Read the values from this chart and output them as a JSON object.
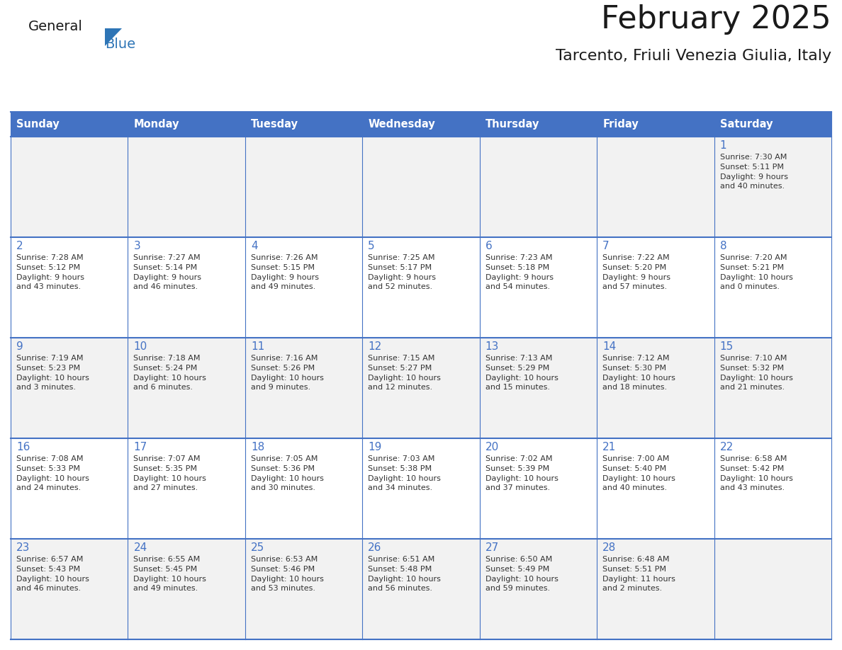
{
  "title": "February 2025",
  "subtitle": "Tarcento, Friuli Venezia Giulia, Italy",
  "days_of_week": [
    "Sunday",
    "Monday",
    "Tuesday",
    "Wednesday",
    "Thursday",
    "Friday",
    "Saturday"
  ],
  "header_bg": "#4472C4",
  "header_text": "#FFFFFF",
  "cell_bg_light": "#F2F2F2",
  "cell_bg_white": "#FFFFFF",
  "border_color": "#4472C4",
  "day_num_color": "#4472C4",
  "cell_text_color": "#333333",
  "logo_general_color": "#1a1a1a",
  "logo_blue_color": "#2E75B6",
  "title_color": "#1a1a1a",
  "weeks": [
    [
      {
        "day": null,
        "sunrise": null,
        "sunset": null,
        "daylight": null
      },
      {
        "day": null,
        "sunrise": null,
        "sunset": null,
        "daylight": null
      },
      {
        "day": null,
        "sunrise": null,
        "sunset": null,
        "daylight": null
      },
      {
        "day": null,
        "sunrise": null,
        "sunset": null,
        "daylight": null
      },
      {
        "day": null,
        "sunrise": null,
        "sunset": null,
        "daylight": null
      },
      {
        "day": null,
        "sunrise": null,
        "sunset": null,
        "daylight": null
      },
      {
        "day": 1,
        "sunrise": "7:30 AM",
        "sunset": "5:11 PM",
        "daylight": "9 hours\nand 40 minutes."
      }
    ],
    [
      {
        "day": 2,
        "sunrise": "7:28 AM",
        "sunset": "5:12 PM",
        "daylight": "9 hours\nand 43 minutes."
      },
      {
        "day": 3,
        "sunrise": "7:27 AM",
        "sunset": "5:14 PM",
        "daylight": "9 hours\nand 46 minutes."
      },
      {
        "day": 4,
        "sunrise": "7:26 AM",
        "sunset": "5:15 PM",
        "daylight": "9 hours\nand 49 minutes."
      },
      {
        "day": 5,
        "sunrise": "7:25 AM",
        "sunset": "5:17 PM",
        "daylight": "9 hours\nand 52 minutes."
      },
      {
        "day": 6,
        "sunrise": "7:23 AM",
        "sunset": "5:18 PM",
        "daylight": "9 hours\nand 54 minutes."
      },
      {
        "day": 7,
        "sunrise": "7:22 AM",
        "sunset": "5:20 PM",
        "daylight": "9 hours\nand 57 minutes."
      },
      {
        "day": 8,
        "sunrise": "7:20 AM",
        "sunset": "5:21 PM",
        "daylight": "10 hours\nand 0 minutes."
      }
    ],
    [
      {
        "day": 9,
        "sunrise": "7:19 AM",
        "sunset": "5:23 PM",
        "daylight": "10 hours\nand 3 minutes."
      },
      {
        "day": 10,
        "sunrise": "7:18 AM",
        "sunset": "5:24 PM",
        "daylight": "10 hours\nand 6 minutes."
      },
      {
        "day": 11,
        "sunrise": "7:16 AM",
        "sunset": "5:26 PM",
        "daylight": "10 hours\nand 9 minutes."
      },
      {
        "day": 12,
        "sunrise": "7:15 AM",
        "sunset": "5:27 PM",
        "daylight": "10 hours\nand 12 minutes."
      },
      {
        "day": 13,
        "sunrise": "7:13 AM",
        "sunset": "5:29 PM",
        "daylight": "10 hours\nand 15 minutes."
      },
      {
        "day": 14,
        "sunrise": "7:12 AM",
        "sunset": "5:30 PM",
        "daylight": "10 hours\nand 18 minutes."
      },
      {
        "day": 15,
        "sunrise": "7:10 AM",
        "sunset": "5:32 PM",
        "daylight": "10 hours\nand 21 minutes."
      }
    ],
    [
      {
        "day": 16,
        "sunrise": "7:08 AM",
        "sunset": "5:33 PM",
        "daylight": "10 hours\nand 24 minutes."
      },
      {
        "day": 17,
        "sunrise": "7:07 AM",
        "sunset": "5:35 PM",
        "daylight": "10 hours\nand 27 minutes."
      },
      {
        "day": 18,
        "sunrise": "7:05 AM",
        "sunset": "5:36 PM",
        "daylight": "10 hours\nand 30 minutes."
      },
      {
        "day": 19,
        "sunrise": "7:03 AM",
        "sunset": "5:38 PM",
        "daylight": "10 hours\nand 34 minutes."
      },
      {
        "day": 20,
        "sunrise": "7:02 AM",
        "sunset": "5:39 PM",
        "daylight": "10 hours\nand 37 minutes."
      },
      {
        "day": 21,
        "sunrise": "7:00 AM",
        "sunset": "5:40 PM",
        "daylight": "10 hours\nand 40 minutes."
      },
      {
        "day": 22,
        "sunrise": "6:58 AM",
        "sunset": "5:42 PM",
        "daylight": "10 hours\nand 43 minutes."
      }
    ],
    [
      {
        "day": 23,
        "sunrise": "6:57 AM",
        "sunset": "5:43 PM",
        "daylight": "10 hours\nand 46 minutes."
      },
      {
        "day": 24,
        "sunrise": "6:55 AM",
        "sunset": "5:45 PM",
        "daylight": "10 hours\nand 49 minutes."
      },
      {
        "day": 25,
        "sunrise": "6:53 AM",
        "sunset": "5:46 PM",
        "daylight": "10 hours\nand 53 minutes."
      },
      {
        "day": 26,
        "sunrise": "6:51 AM",
        "sunset": "5:48 PM",
        "daylight": "10 hours\nand 56 minutes."
      },
      {
        "day": 27,
        "sunrise": "6:50 AM",
        "sunset": "5:49 PM",
        "daylight": "10 hours\nand 59 minutes."
      },
      {
        "day": 28,
        "sunrise": "6:48 AM",
        "sunset": "5:51 PM",
        "daylight": "11 hours\nand 2 minutes."
      },
      {
        "day": null,
        "sunrise": null,
        "sunset": null,
        "daylight": null
      }
    ]
  ]
}
